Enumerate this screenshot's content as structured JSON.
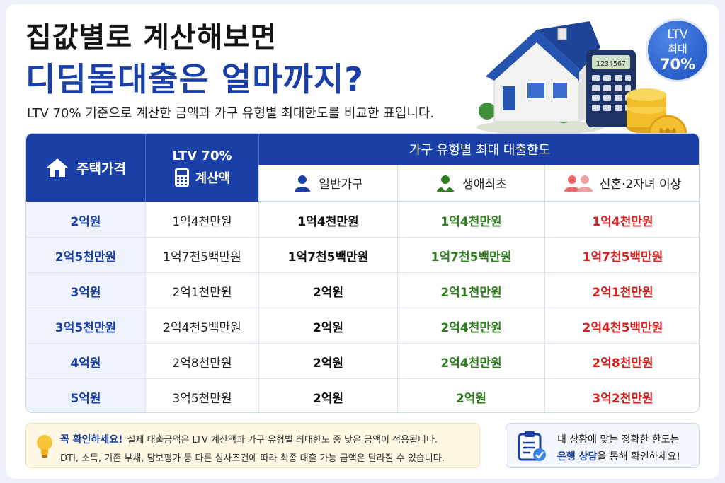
{
  "header": {
    "title_line1": "집값별로 계산해보면",
    "title_line2": "디딤돌대출은 얼마까지?",
    "subtitle": "LTV 70% 기준으로 계산한 금액과 가구 유형별 최대한도를 비교한 표입니다."
  },
  "badge": {
    "line1": "LTV",
    "line2": "최대",
    "line3": "70%"
  },
  "illustration": {
    "calculator_display": "1234567",
    "icon_names": [
      "house-icon",
      "calculator-icon",
      "coin-icon"
    ]
  },
  "table": {
    "col_price": "주택가격",
    "col_ltv_line1": "LTV 70%",
    "col_ltv_line2": "계산액",
    "col_group": "가구 유형별 최대 대출한도",
    "col_general": "일반가구",
    "col_first": "생애최초",
    "col_newlywed": "신혼·2자녀 이상",
    "rows": [
      {
        "price": "2억원",
        "ltv": "1억4천만원",
        "general": "1억4천만원",
        "first": "1억4천만원",
        "newlywed": "1억4천만원"
      },
      {
        "price": "2억5천만원",
        "ltv": "1억7천5백만원",
        "general": "1억7천5백만원",
        "first": "1억7천5백만원",
        "newlywed": "1억7천5백만원"
      },
      {
        "price": "3억원",
        "ltv": "2억1천만원",
        "general": "2억원",
        "first": "2억1천만원",
        "newlywed": "2억1천만원"
      },
      {
        "price": "3억5천만원",
        "ltv": "2억4천5백만원",
        "general": "2억원",
        "first": "2억4천만원",
        "newlywed": "2억4천5백만원"
      },
      {
        "price": "4억원",
        "ltv": "2억8천만원",
        "general": "2억원",
        "first": "2억4천만원",
        "newlywed": "2억8천만원"
      },
      {
        "price": "5억원",
        "ltv": "3억5천만원",
        "general": "2억원",
        "first": "2억원",
        "newlywed": "3억2천만원"
      }
    ]
  },
  "note": {
    "label": "꼭 확인하세요!",
    "line1": "실제 대출금액은 LTV 계산액과 가구 유형별 최대한도 중 낮은 금액이 적용됩니다.",
    "line2": "DTI, 소득, 기존 부채, 담보평가 등 다른 심사조건에 따라 최종 대출 가능 금액은 달라질 수 있습니다."
  },
  "consult": {
    "line1": "내 상황에 맞는 정확한 한도는",
    "line2_emph": "은행 상담",
    "line2_rest": "을 통해 확인하세요!"
  },
  "colors": {
    "brand_blue": "#1a3fa6",
    "first_green": "#2e7d1f",
    "newlywed_red": "#d42020"
  }
}
